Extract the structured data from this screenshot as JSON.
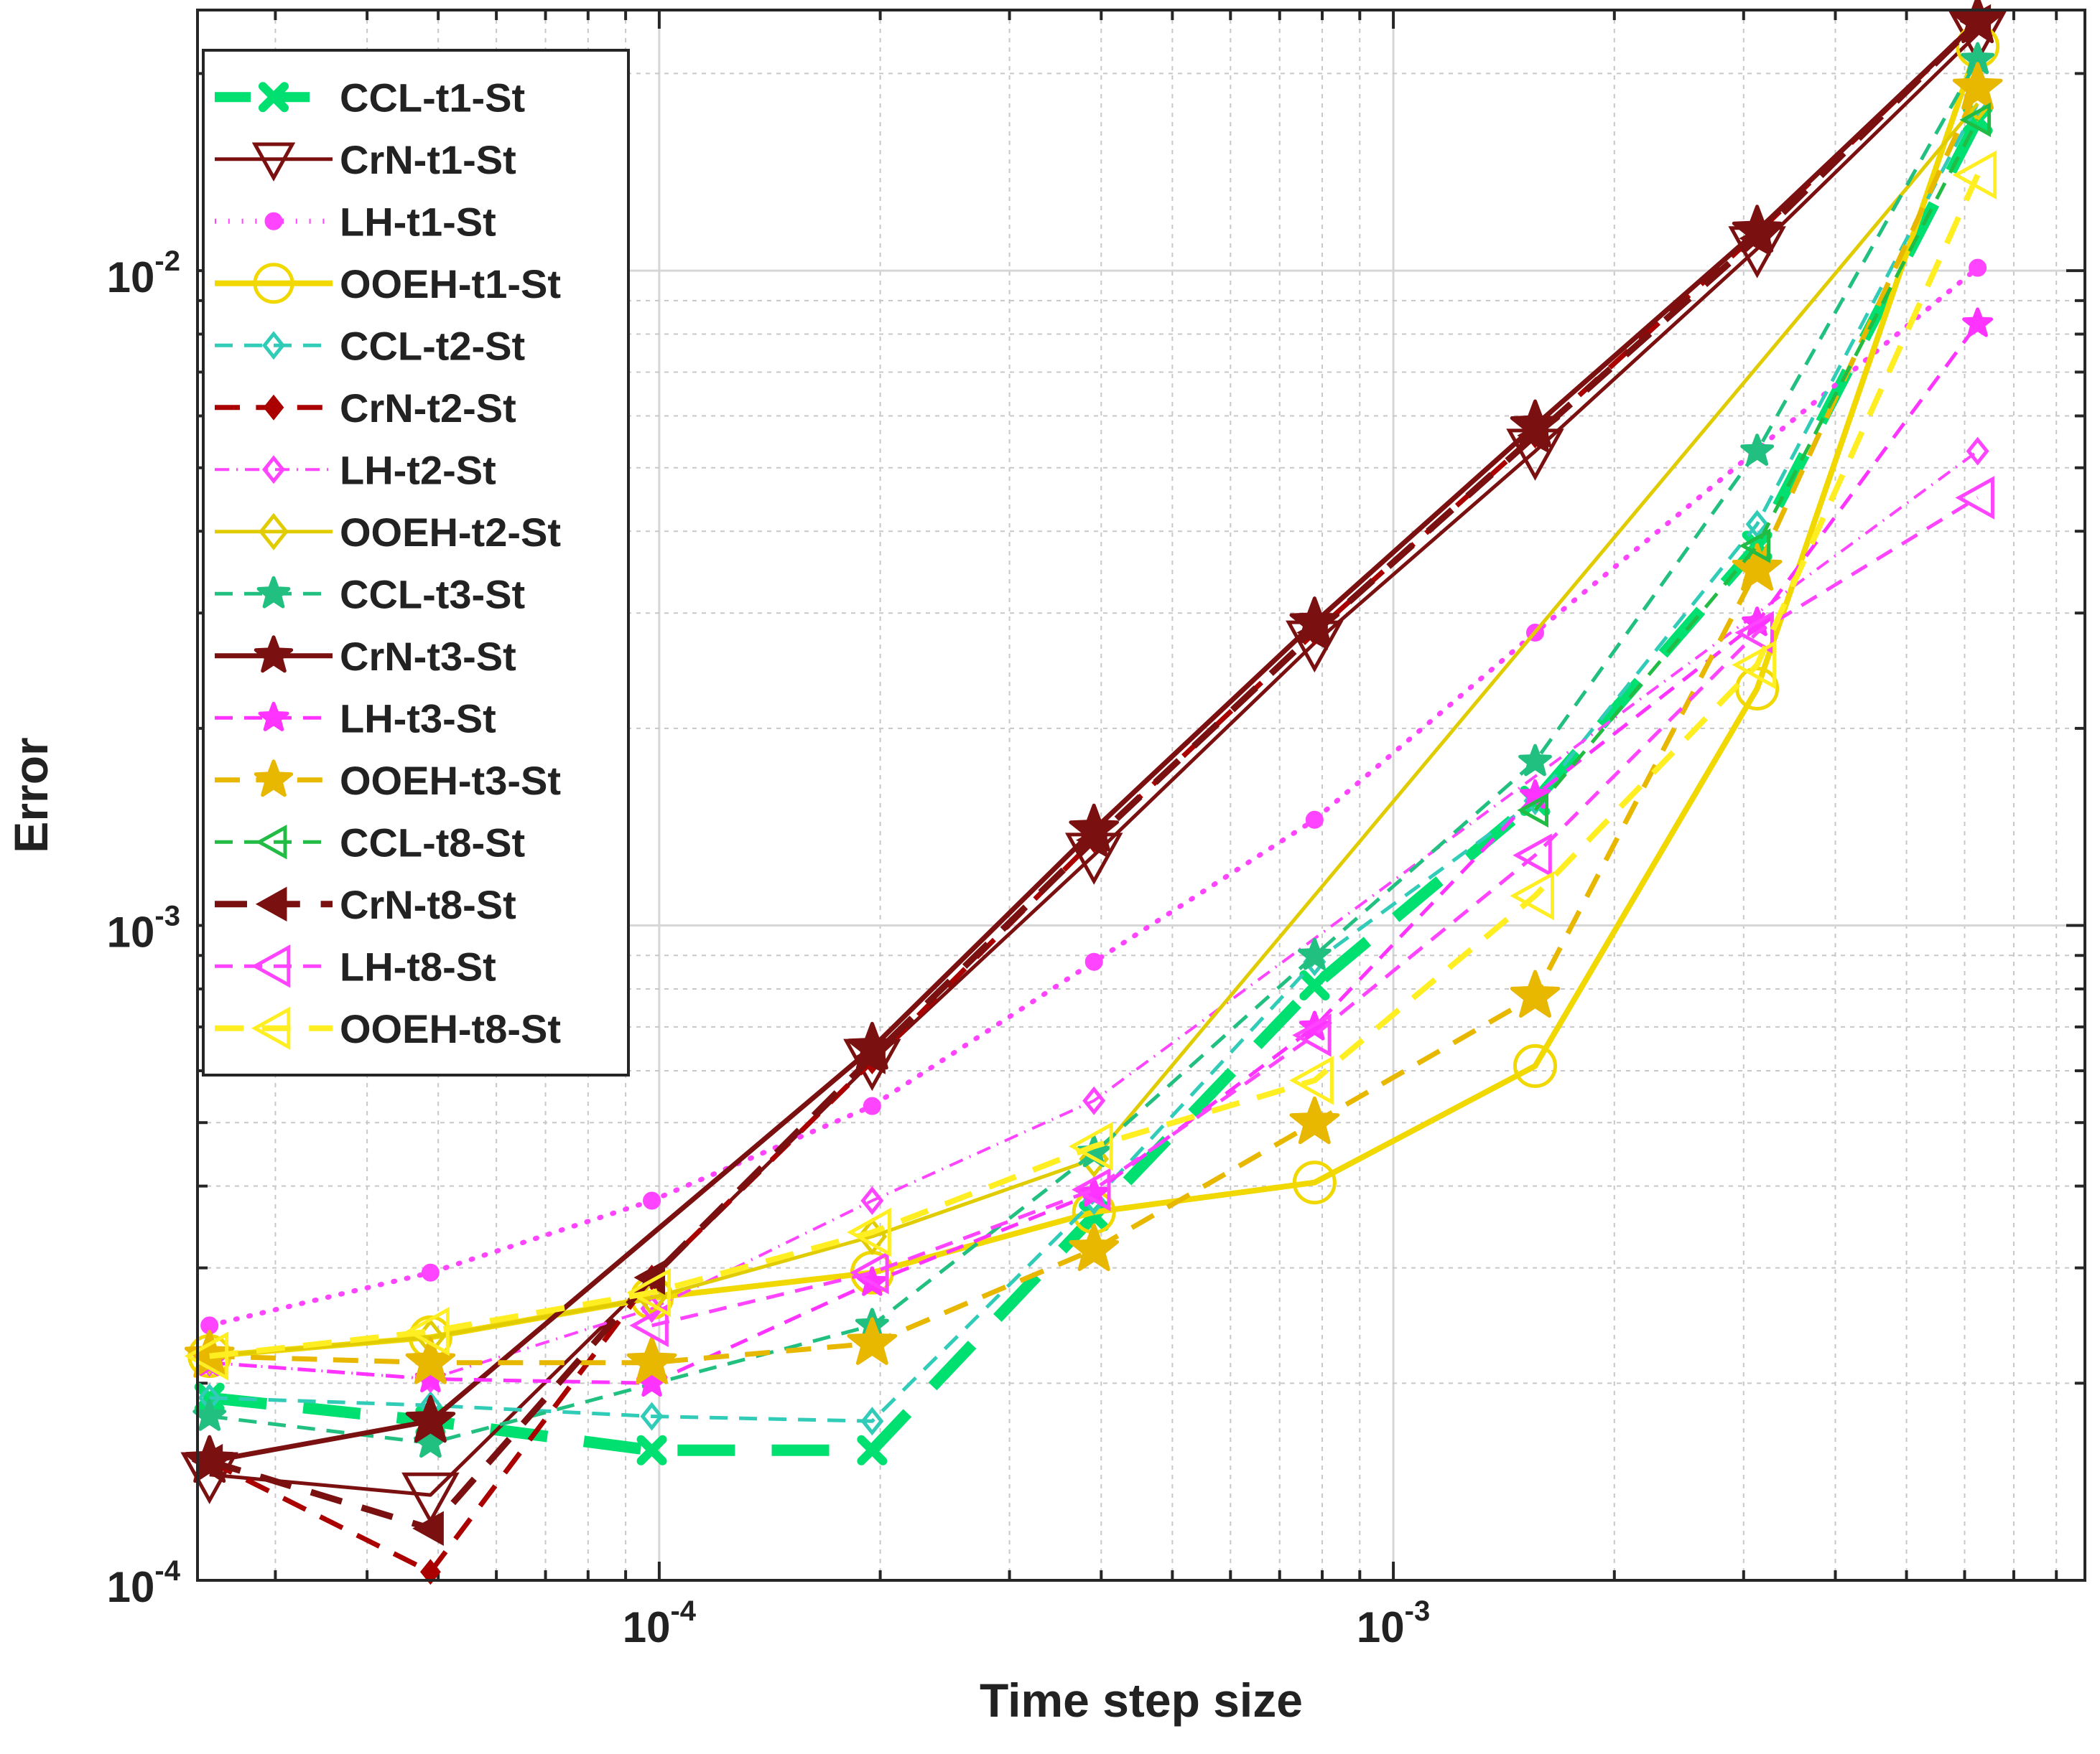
{
  "chart_data": {
    "type": "line",
    "xscale": "log",
    "yscale": "log",
    "xlabel": "Time step size",
    "ylabel": "Error",
    "xlim": [
      2.35e-05,
      0.00875
    ],
    "ylim": [
      0.0001,
      0.025
    ],
    "x_ticks": [
      {
        "value": 0.0001,
        "base": "10",
        "exp": "-4"
      },
      {
        "value": 0.001,
        "base": "10",
        "exp": "-3"
      }
    ],
    "y_ticks": [
      {
        "value": 0.0001,
        "base": "10",
        "exp": "-4"
      },
      {
        "value": 0.001,
        "base": "10",
        "exp": "-3"
      },
      {
        "value": 0.01,
        "base": "10",
        "exp": "-2"
      }
    ],
    "grid": true,
    "legend_position": "top-left",
    "x": [
      2.44e-05,
      4.88e-05,
      9.77e-05,
      0.000195,
      0.000391,
      0.000781,
      0.00156,
      0.00313,
      0.00625
    ],
    "series": [
      {
        "name": "CCL-t1-St",
        "color": "#00e070",
        "marker": "x",
        "line": "dash",
        "width": 16,
        "marker_size": 15,
        "fill": true,
        "values": [
          0.00019,
          0.000175,
          0.000158,
          0.000158,
          0.00036,
          0.00081,
          0.00155,
          0.0038,
          0.017
        ]
      },
      {
        "name": "CrN-t1-St",
        "color": "#7a1010",
        "marker": "triangle-down",
        "line": "solid",
        "width": 5,
        "marker_size": 36,
        "fill": false,
        "values": [
          0.000145,
          0.000135,
          null,
          0.00062,
          0.00128,
          0.0027,
          0.0053,
          0.0108,
          0.023
        ]
      },
      {
        "name": "LH-t1-St",
        "color": "#ff44ff",
        "marker": "dot",
        "line": "dot",
        "width": 7,
        "marker_size": 12,
        "fill": true,
        "values": [
          0.000245,
          0.000295,
          0.00038,
          0.00053,
          0.00088,
          0.00145,
          0.0028,
          null,
          0.0101
        ]
      },
      {
        "name": "OOEH-t1-St",
        "color": "#f0d800",
        "marker": "circle",
        "line": "solid",
        "width": 8,
        "marker_size": 28,
        "fill": false,
        "values": [
          0.00022,
          0.000235,
          0.00027,
          0.000295,
          0.000365,
          0.000405,
          0.00061,
          0.0023,
          0.022
        ]
      },
      {
        "name": "CCL-t2-St",
        "color": "#30ccb8",
        "marker": "diamond",
        "line": "dash",
        "width": 5,
        "marker_size": 16,
        "fill": false,
        "values": [
          0.00019,
          0.000185,
          0.000178,
          0.000175,
          0.00038,
          0.00088,
          0.00155,
          0.0041,
          0.018
        ]
      },
      {
        "name": "CrN-t2-St",
        "color": "#aa0000",
        "marker": "diamond",
        "line": "dash",
        "width": 7,
        "marker_size": 14,
        "fill": true,
        "values": [
          0.000152,
          0.000103,
          0.00029,
          0.00062,
          0.00135,
          0.0028,
          0.0056,
          0.0114,
          0.024
        ]
      },
      {
        "name": "LH-t2-St",
        "color": "#ff44ff",
        "marker": "diamond",
        "line": "dashdot",
        "width": 4,
        "marker_size": 16,
        "fill": false,
        "values": [
          0.000215,
          0.000203,
          0.00026,
          0.00038,
          0.00054,
          null,
          null,
          null,
          0.0053
        ]
      },
      {
        "name": "OOEH-t2-St",
        "color": "#e0cc00",
        "marker": "diamond",
        "line": "solid",
        "width": 5,
        "marker_size": 22,
        "fill": false,
        "values": [
          0.00022,
          0.000235,
          0.00027,
          0.000335,
          0.00044,
          null,
          null,
          null,
          0.018
        ]
      },
      {
        "name": "CCL-t3-St",
        "color": "#22c080",
        "marker": "star",
        "line": "dash",
        "width": 5,
        "marker_size": 22,
        "fill": true,
        "values": [
          0.000178,
          0.000162,
          null,
          0.000245,
          0.00045,
          0.0009,
          0.00178,
          0.0053,
          0.021
        ]
      },
      {
        "name": "CrN-t3-St",
        "color": "#7a1010",
        "marker": "star",
        "line": "solid",
        "width": 7,
        "marker_size": 34,
        "fill": true,
        "values": [
          0.000152,
          0.000175,
          null,
          0.00065,
          0.0014,
          0.0029,
          0.0058,
          0.0115,
          0.024
        ]
      },
      {
        "name": "LH-t3-St",
        "color": "#ff33ff",
        "marker": "star",
        "line": "dash",
        "width": 5,
        "marker_size": 20,
        "fill": true,
        "values": [
          0.000215,
          0.000203,
          0.0002,
          0.000285,
          0.00039,
          0.0007,
          0.00158,
          0.0029,
          0.0083
        ]
      },
      {
        "name": "OOEH-t3-St",
        "color": "#e8b800",
        "marker": "star",
        "line": "dash",
        "width": 7,
        "marker_size": 34,
        "fill": true,
        "values": [
          0.00022,
          0.000215,
          0.000215,
          0.00023,
          0.00032,
          0.0005,
          0.00078,
          0.0035,
          0.019
        ]
      },
      {
        "name": "CCL-t8-St",
        "color": "#22bb44",
        "marker": "triangle-left",
        "line": "dash",
        "width": 5,
        "marker_size": 20,
        "fill": false,
        "values": [
          null,
          null,
          null,
          null,
          null,
          null,
          0.0015,
          0.0038,
          0.017
        ]
      },
      {
        "name": "CrN-t8-St",
        "color": "#7a1010",
        "marker": "triangle-left",
        "line": "dash",
        "width": 9,
        "marker_size": 20,
        "fill": true,
        "values": [
          0.000152,
          0.00012,
          0.00029,
          0.00063,
          0.00135,
          0.0028,
          0.0056,
          0.0112,
          0.024
        ]
      },
      {
        "name": "LH-t8-St",
        "color": "#ff44ff",
        "marker": "triangle-left",
        "line": "dash",
        "width": 5,
        "marker_size": 26,
        "fill": false,
        "values": [
          null,
          null,
          0.000245,
          0.000295,
          0.000395,
          0.00068,
          0.00128,
          0.0028,
          0.0045
        ]
      },
      {
        "name": "OOEH-t8-St",
        "color": "#ffee22",
        "marker": "triangle-left",
        "line": "dash",
        "width": 8,
        "marker_size": 30,
        "fill": false,
        "values": [
          0.00022,
          0.00024,
          0.000275,
          0.00034,
          0.00046,
          0.00058,
          0.00111,
          0.0025,
          0.014
        ]
      }
    ]
  }
}
